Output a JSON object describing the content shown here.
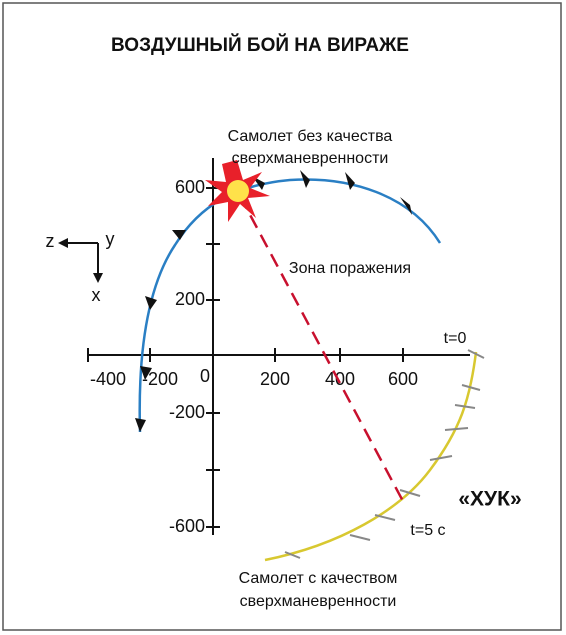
{
  "header": {
    "title": "ВОЗДУШНЫЙ БОЙ НА ВИРАЖЕ"
  },
  "axes": {
    "x_ticks": [
      "-400",
      "-200",
      "0",
      "200",
      "400",
      "600"
    ],
    "y_ticks": [
      "600",
      "200",
      "-200",
      "-600"
    ],
    "compass": {
      "z": "z",
      "y": "y",
      "x": "x"
    }
  },
  "labels": {
    "fighter_top": [
      "Самолет без качества",
      "сверхманевренности"
    ],
    "kill_zone": "Зона поражения",
    "t0": "t=0",
    "hook": "«ХУК»",
    "t5": "t=5 с",
    "fighter_bottom": [
      "Самолет с качеством",
      "сверхманевренности"
    ]
  }
}
